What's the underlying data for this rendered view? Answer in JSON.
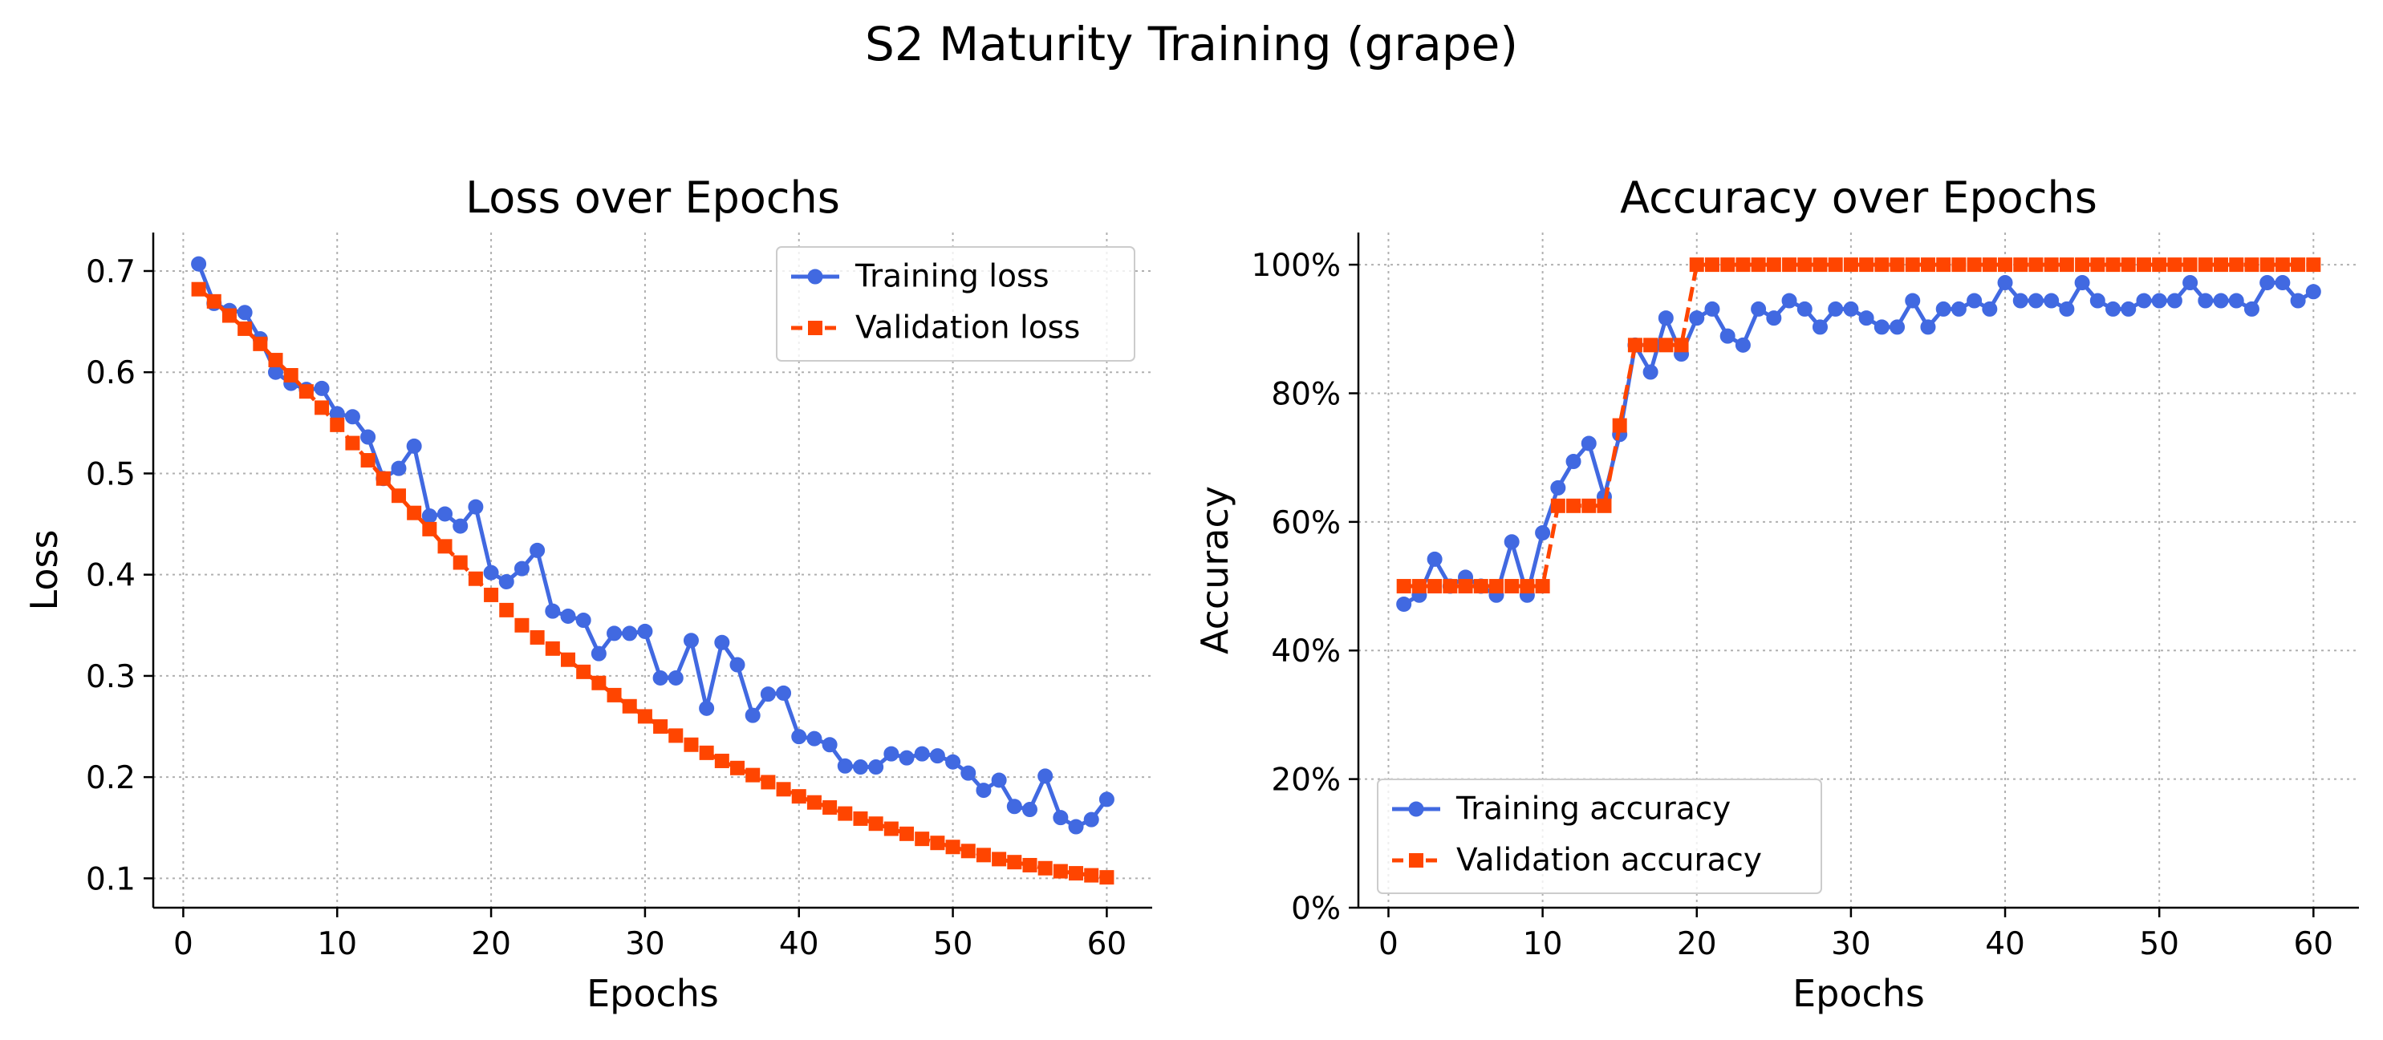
{
  "suptitle": "S2 Maturity Training (grape)",
  "chart_data": [
    {
      "type": "line",
      "title": "Loss over Epochs",
      "xlabel": "Epochs",
      "ylabel": "Loss",
      "xlim": [
        -1.95,
        62.95
      ],
      "ylim": [
        0.071,
        0.738
      ],
      "xticks": [
        0,
        10,
        20,
        30,
        40,
        50,
        60
      ],
      "xtick_labels": [
        "0",
        "10",
        "20",
        "30",
        "40",
        "50",
        "60"
      ],
      "yticks": [
        0.1,
        0.2,
        0.3,
        0.4,
        0.5,
        0.6,
        0.7
      ],
      "ytick_labels": [
        "0.1",
        "0.2",
        "0.3",
        "0.4",
        "0.5",
        "0.6",
        "0.7"
      ],
      "grid": true,
      "legend_position": "upper right",
      "x": [
        1,
        2,
        3,
        4,
        5,
        6,
        7,
        8,
        9,
        10,
        11,
        12,
        13,
        14,
        15,
        16,
        17,
        18,
        19,
        20,
        21,
        22,
        23,
        24,
        25,
        26,
        27,
        28,
        29,
        30,
        31,
        32,
        33,
        34,
        35,
        36,
        37,
        38,
        39,
        40,
        41,
        42,
        43,
        44,
        45,
        46,
        47,
        48,
        49,
        50,
        51,
        52,
        53,
        54,
        55,
        56,
        57,
        58,
        59,
        60
      ],
      "series": [
        {
          "name": "Training loss",
          "color": "#4169E1",
          "marker": "circle",
          "linestyle": "solid",
          "values": [
            0.707,
            0.668,
            0.661,
            0.659,
            0.633,
            0.6,
            0.589,
            0.583,
            0.584,
            0.559,
            0.556,
            0.536,
            0.495,
            0.505,
            0.527,
            0.458,
            0.46,
            0.448,
            0.467,
            0.402,
            0.393,
            0.406,
            0.424,
            0.364,
            0.359,
            0.355,
            0.322,
            0.342,
            0.342,
            0.344,
            0.298,
            0.298,
            0.335,
            0.268,
            0.333,
            0.311,
            0.261,
            0.282,
            0.283,
            0.24,
            0.238,
            0.232,
            0.211,
            0.21,
            0.21,
            0.223,
            0.219,
            0.223,
            0.221,
            0.215,
            0.204,
            0.187,
            0.197,
            0.171,
            0.168,
            0.201,
            0.16,
            0.151,
            0.158,
            0.178
          ]
        },
        {
          "name": "Validation loss",
          "color": "#FF4500",
          "marker": "square",
          "linestyle": "dashed",
          "values": [
            0.682,
            0.67,
            0.656,
            0.643,
            0.628,
            0.612,
            0.597,
            0.581,
            0.565,
            0.548,
            0.53,
            0.513,
            0.495,
            0.478,
            0.461,
            0.445,
            0.428,
            0.412,
            0.396,
            0.38,
            0.365,
            0.35,
            0.338,
            0.327,
            0.316,
            0.304,
            0.293,
            0.281,
            0.27,
            0.26,
            0.25,
            0.241,
            0.232,
            0.224,
            0.216,
            0.209,
            0.202,
            0.195,
            0.188,
            0.181,
            0.175,
            0.17,
            0.164,
            0.159,
            0.154,
            0.149,
            0.144,
            0.139,
            0.135,
            0.131,
            0.127,
            0.123,
            0.119,
            0.116,
            0.113,
            0.11,
            0.107,
            0.105,
            0.103,
            0.101
          ]
        }
      ]
    },
    {
      "type": "line",
      "title": "Accuracy over Epochs",
      "xlabel": "Epochs",
      "ylabel": "Accuracy",
      "xlim": [
        -1.95,
        62.95
      ],
      "ylim": [
        0,
        1.05
      ],
      "xticks": [
        0,
        10,
        20,
        30,
        40,
        50,
        60
      ],
      "xtick_labels": [
        "0",
        "10",
        "20",
        "30",
        "40",
        "50",
        "60"
      ],
      "yticks": [
        0,
        0.2,
        0.4,
        0.6,
        0.8,
        1.0
      ],
      "ytick_labels": [
        "0%",
        "20%",
        "40%",
        "60%",
        "80%",
        "100%"
      ],
      "grid": true,
      "legend_position": "lower left",
      "x": [
        1,
        2,
        3,
        4,
        5,
        6,
        7,
        8,
        9,
        10,
        11,
        12,
        13,
        14,
        15,
        16,
        17,
        18,
        19,
        20,
        21,
        22,
        23,
        24,
        25,
        26,
        27,
        28,
        29,
        30,
        31,
        32,
        33,
        34,
        35,
        36,
        37,
        38,
        39,
        40,
        41,
        42,
        43,
        44,
        45,
        46,
        47,
        48,
        49,
        50,
        51,
        52,
        53,
        54,
        55,
        56,
        57,
        58,
        59,
        60
      ],
      "series": [
        {
          "name": "Training accuracy",
          "color": "#4169E1",
          "marker": "circle",
          "linestyle": "solid",
          "values": [
            0.472,
            0.486,
            0.542,
            0.5,
            0.514,
            0.5,
            0.486,
            0.569,
            0.486,
            0.583,
            0.653,
            0.694,
            0.722,
            0.639,
            0.736,
            0.875,
            0.833,
            0.917,
            0.861,
            0.917,
            0.931,
            0.889,
            0.875,
            0.931,
            0.917,
            0.944,
            0.931,
            0.903,
            0.931,
            0.931,
            0.917,
            0.903,
            0.903,
            0.944,
            0.903,
            0.931,
            0.931,
            0.944,
            0.931,
            0.972,
            0.944,
            0.944,
            0.944,
            0.931,
            0.972,
            0.944,
            0.931,
            0.931,
            0.944,
            0.944,
            0.944,
            0.972,
            0.944,
            0.944,
            0.944,
            0.931,
            0.972,
            0.972,
            0.944,
            0.958
          ]
        },
        {
          "name": "Validation accuracy",
          "color": "#FF4500",
          "marker": "square",
          "linestyle": "dashed",
          "values": [
            0.5,
            0.5,
            0.5,
            0.5,
            0.5,
            0.5,
            0.5,
            0.5,
            0.5,
            0.5,
            0.625,
            0.625,
            0.625,
            0.625,
            0.75,
            0.875,
            0.875,
            0.875,
            0.875,
            1,
            1,
            1,
            1,
            1,
            1,
            1,
            1,
            1,
            1,
            1,
            1,
            1,
            1,
            1,
            1,
            1,
            1,
            1,
            1,
            1,
            1,
            1,
            1,
            1,
            1,
            1,
            1,
            1,
            1,
            1,
            1,
            1,
            1,
            1,
            1,
            1,
            1,
            1,
            1,
            1
          ]
        }
      ]
    }
  ]
}
